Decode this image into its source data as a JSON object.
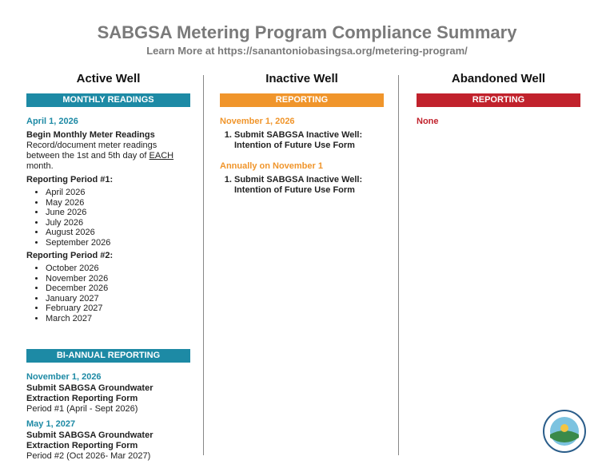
{
  "header": {
    "title": "SABGSA Metering Program Compliance Summary",
    "subtitle": "Learn More at https://sanantoniobasingsa.org/metering-program/"
  },
  "active": {
    "title": "Active Well",
    "monthly": {
      "label": "MONTHLY READINGS",
      "date": "April 1, 2026",
      "heading": "Begin Monthly Meter Readings",
      "text": "Record/document meter readings between the 1st and 5th day of",
      "emphasis": "EACH",
      "text_end": "month.",
      "period1": {
        "label": "Reporting Period #1:",
        "items": [
          "April 2026",
          "May 2026",
          "June 2026",
          "July 2026",
          "August 2026",
          "September 2026"
        ]
      },
      "period2": {
        "label": "Reporting Period #2:",
        "items": [
          "October 2026",
          "November 2026",
          "December 2026",
          "January 2027",
          "February 2027",
          "March 2027"
        ]
      }
    },
    "biannual": {
      "label": "BI-ANNUAL REPORTING",
      "items": [
        {
          "date": "November 1, 2026",
          "heading": "Submit SABGSA Groundwater Extraction Reporting Form",
          "text": "Period #1 (April - Sept 2026)"
        },
        {
          "date": "May 1, 2027",
          "heading": "Submit SABGSA Groundwater Extraction Reporting Form",
          "text": "Period #2 (Oct 2026- Mar 2027)"
        }
      ]
    }
  },
  "inactive": {
    "title": "Inactive Well",
    "label": "REPORTING",
    "groups": [
      {
        "date": "November 1, 2026",
        "items": [
          "Submit SABGSA Inactive Well: Intention of Future Use Form"
        ]
      },
      {
        "date": "Annually on November 1",
        "items": [
          "Submit SABGSA Inactive Well: Intention of Future Use Form"
        ]
      }
    ]
  },
  "abandoned": {
    "title": "Abandoned Well",
    "label": "REPORTING",
    "text": "None"
  }
}
